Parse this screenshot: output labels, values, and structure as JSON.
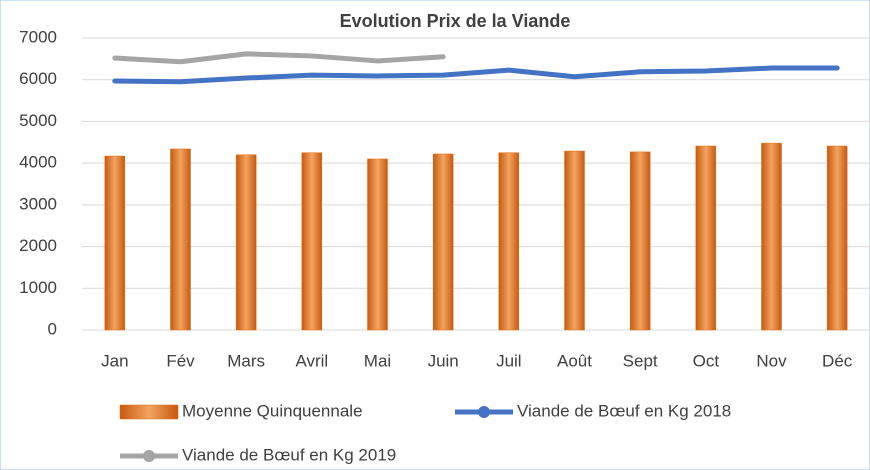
{
  "chart_data": {
    "type": "bar_line",
    "title": "Evolution Prix de la Viande",
    "categories": [
      "Jan",
      "Fév",
      "Mars",
      "Avril",
      "Mai",
      "Juin",
      "Juil",
      "Août",
      "Sept",
      "Oct",
      "Nov",
      "Déc"
    ],
    "series": [
      {
        "name": "Moyenne Quinquennale",
        "type": "bar",
        "color": "#e46c0a",
        "values": [
          4170,
          4340,
          4200,
          4250,
          4100,
          4220,
          4250,
          4290,
          4270,
          4410,
          4480,
          4410
        ]
      },
      {
        "name": "Viande de Bœuf en Kg 2018",
        "type": "line",
        "color": "#4472c4",
        "values": [
          5970,
          5950,
          6040,
          6110,
          6090,
          6110,
          6230,
          6070,
          6190,
          6210,
          6280,
          6280
        ]
      },
      {
        "name": "Viande de Bœuf en Kg 2019",
        "type": "line",
        "color": "#a5a5a5",
        "values": [
          6520,
          6430,
          6620,
          6570,
          6450,
          6550,
          null,
          null,
          null,
          null,
          null,
          null
        ]
      }
    ],
    "ylim": [
      0,
      7000
    ],
    "yticks": [
      0,
      1000,
      2000,
      3000,
      4000,
      5000,
      6000,
      7000
    ],
    "grid": true
  }
}
